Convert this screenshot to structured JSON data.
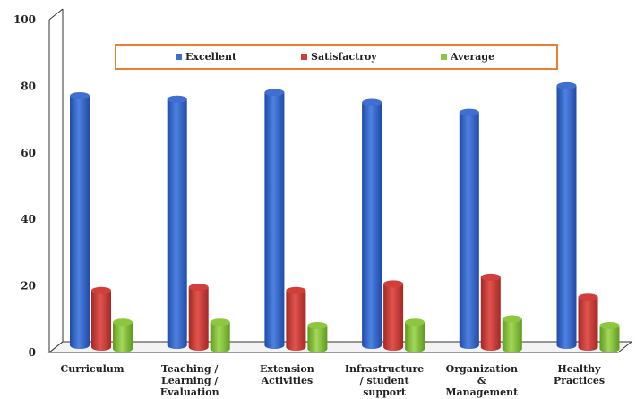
{
  "chart_data": {
    "type": "bar",
    "title": "",
    "xlabel": "",
    "ylabel": "",
    "ylim": [
      0,
      100
    ],
    "yticks": [
      0,
      20,
      40,
      60,
      80,
      100
    ],
    "grid": false,
    "legend_position": "top",
    "categories": [
      [
        "Curriculum"
      ],
      [
        "Teaching /",
        "Learning /",
        "Evaluation"
      ],
      [
        "Extension",
        "Activities"
      ],
      [
        "Infrastructure",
        "/ student",
        "support"
      ],
      [
        "Organization",
        "&",
        "Management"
      ],
      [
        "Healthy",
        "Practices"
      ]
    ],
    "series": [
      {
        "name": "Excellent",
        "color": "#3f6fd0",
        "values": [
          75,
          74,
          76,
          73,
          70,
          78
        ]
      },
      {
        "name": "Satisfactroy",
        "color": "#d23f3a",
        "values": [
          17,
          18,
          17,
          19,
          21,
          15
        ]
      },
      {
        "name": "Average",
        "color": "#8dc63f",
        "values": [
          8,
          8,
          7,
          8,
          9,
          7
        ]
      }
    ]
  }
}
